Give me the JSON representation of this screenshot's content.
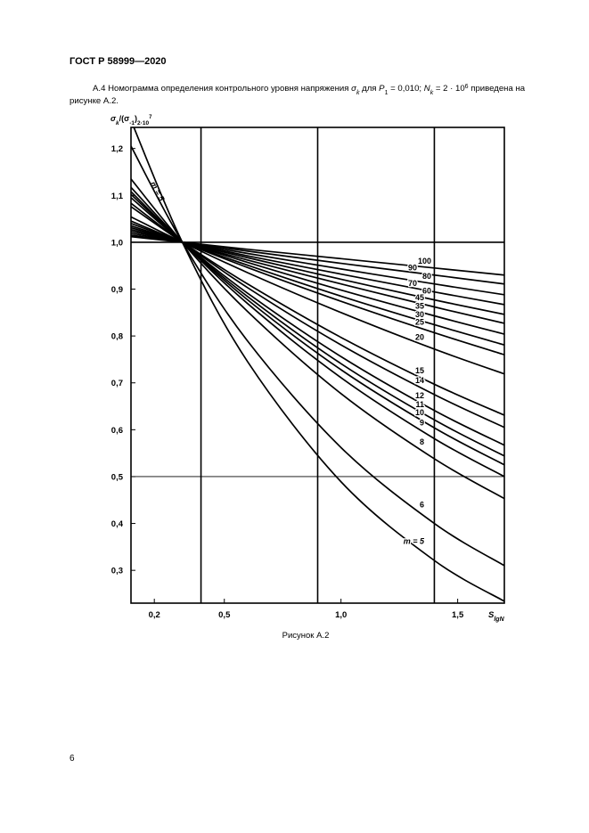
{
  "header": "ГОСТ Р 58999—2020",
  "paragraph": [
    "А.4 Номограмма определения контрольного уровня напряжения ",
    "σ",
    "k",
    " для ",
    "P",
    "1",
    " = 0,010; ",
    "N",
    "k",
    " = 2 · 10",
    "6",
    " приведена на",
    "рисунке А.2."
  ],
  "caption": "Рисунок А.2",
  "page_number": "6",
  "chart_data": {
    "type": "line",
    "y_label": [
      "σ",
      "k",
      "/(σ",
      "-1",
      ")",
      "2·10",
      "7"
    ],
    "x_label": [
      "S",
      "lgN"
    ],
    "annotation": "m = 5",
    "color": "#000000",
    "x": [
      0.1,
      0.32,
      0.6,
      1.0,
      1.4,
      1.7
    ],
    "xlim": [
      0.1,
      1.7
    ],
    "ylim": [
      0.23,
      1.245
    ],
    "xticks": [
      {
        "value": 0.2,
        "label": "0,2"
      },
      {
        "value": 0.5,
        "label": "0,5"
      },
      {
        "value": 1.0,
        "label": "1,0"
      },
      {
        "value": 1.5,
        "label": "1,5"
      }
    ],
    "yticks": [
      {
        "value": 0.3,
        "label": "0,3"
      },
      {
        "value": 0.4,
        "label": "0,4"
      },
      {
        "value": 0.5,
        "label": "0,5"
      },
      {
        "value": 0.6,
        "label": "0,6"
      },
      {
        "value": 0.7,
        "label": "0,7"
      },
      {
        "value": 0.8,
        "label": "0,8"
      },
      {
        "value": 0.9,
        "label": "0,9"
      },
      {
        "value": 1.0,
        "label": "1,0"
      },
      {
        "value": 1.1,
        "label": "1,1"
      },
      {
        "value": 1.2,
        "label": "1,2"
      }
    ],
    "xgrid": [
      0.4,
      0.9,
      1.4
    ],
    "ygrid": [
      1.0,
      0.5
    ],
    "series": [
      {
        "name": "100",
        "values": [
          1.012,
          1.0,
          0.985,
          0.965,
          0.945,
          0.93
        ]
      },
      {
        "name": "90",
        "values": [
          1.015,
          1.0,
          0.981,
          0.955,
          0.93,
          0.911
        ]
      },
      {
        "name": "80",
        "values": [
          1.019,
          1.0,
          0.976,
          0.943,
          0.911,
          0.888
        ]
      },
      {
        "name": "70",
        "values": [
          1.023,
          1.0,
          0.971,
          0.932,
          0.894,
          0.867
        ]
      },
      {
        "name": "60",
        "values": [
          1.027,
          1.0,
          0.967,
          0.921,
          0.877,
          0.846
        ]
      },
      {
        "name": "45",
        "values": [
          1.031,
          1.0,
          0.962,
          0.911,
          0.862,
          0.827
        ]
      },
      {
        "name": "35",
        "values": [
          1.035,
          1.0,
          0.957,
          0.898,
          0.843,
          0.804
        ]
      },
      {
        "name": "30",
        "values": [
          1.04,
          1.0,
          0.951,
          0.885,
          0.824,
          0.781
        ]
      },
      {
        "name": "25",
        "values": [
          1.045,
          1.0,
          0.946,
          0.874,
          0.807,
          0.76
        ]
      },
      {
        "name": "20",
        "values": [
          1.054,
          1.0,
          0.935,
          0.85,
          0.772,
          0.719
        ]
      },
      {
        "name": "15",
        "values": [
          1.076,
          1.0,
          0.911,
          0.797,
          0.697,
          0.631
        ]
      },
      {
        "name": "14",
        "values": [
          1.083,
          1.0,
          0.903,
          0.781,
          0.675,
          0.605
        ]
      },
      {
        "name": "12",
        "values": [
          1.095,
          1.0,
          0.891,
          0.756,
          0.641,
          0.567
        ]
      },
      {
        "name": "11",
        "values": [
          1.102,
          1.0,
          0.884,
          0.741,
          0.621,
          0.544
        ]
      },
      {
        "name": "10",
        "values": [
          1.108,
          1.0,
          0.877,
          0.728,
          0.604,
          0.525
        ]
      },
      {
        "name": "9",
        "values": [
          1.117,
          1.0,
          0.869,
          0.711,
          0.581,
          0.5
        ]
      },
      {
        "name": "8",
        "values": [
          1.135,
          1.0,
          0.852,
          0.677,
          0.538,
          0.453
        ]
      },
      {
        "name": "6",
        "values": [
          1.205,
          1.0,
          0.789,
          0.562,
          0.4,
          0.31
        ]
      },
      {
        "name": "m = 5",
        "values": [
          1.26,
          1.0,
          0.745,
          0.489,
          0.321,
          0.234
        ]
      }
    ]
  }
}
